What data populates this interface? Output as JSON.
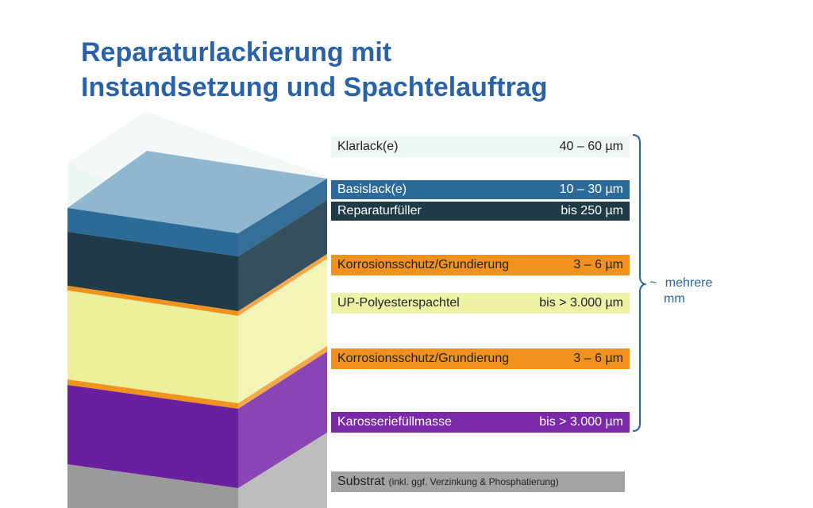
{
  "title": {
    "line1": "Reparaturlackierung mit",
    "line2": "Instandsetzung und Spachtelauftrag"
  },
  "layers": [
    {
      "id": "klarlack",
      "name": "Klarlack(e)",
      "thickness": "40 – 60 µm",
      "label_bg": "#eef6f6",
      "text_color": "#222222"
    },
    {
      "id": "basislack",
      "name": "Basislack(e)",
      "thickness": "10 – 30 µm",
      "label_bg": "#2b6a99",
      "text_color": "#ffffff"
    },
    {
      "id": "reparaturfueller",
      "name": "Reparaturfüller",
      "thickness": "bis 250 µm",
      "label_bg": "#1f3b48",
      "text_color": "#ffffff"
    },
    {
      "id": "korrosion1",
      "name": "Korrosionsschutz/Grundierung",
      "thickness": "3 – 6 µm",
      "label_bg": "#f0921e",
      "text_color": "#222222"
    },
    {
      "id": "polyesterspachtel",
      "name": "UP-Polyesterspachtel",
      "thickness": "bis > 3.000 µm",
      "label_bg": "#eef2a6",
      "text_color": "#222222"
    },
    {
      "id": "korrosion2",
      "name": "Korrosionsschutz/Grundierung",
      "thickness": "3 – 6 µm",
      "label_bg": "#f0921e",
      "text_color": "#222222"
    },
    {
      "id": "karosseriefuellmasse",
      "name": "Karosseriefüllmasse",
      "thickness": "bis > 3.000 µm",
      "label_bg": "#7a2aa8",
      "text_color": "#ffffff"
    },
    {
      "id": "substrat",
      "name": "Substrat",
      "name_note": "(inkl. ggf. Verzinkung & Phosphatierung)",
      "label_bg": "#a3a3a3",
      "text_color": "#222222"
    }
  ],
  "brace": {
    "symbol": "~",
    "line1": "mehrere",
    "line2": "mm",
    "color": "#2a62a8"
  },
  "colors": {
    "klar_front": "#eef5f5",
    "klar_side": "#f6fafa",
    "klar_top": "#f2f8f8",
    "basis_front": "#2b6a99",
    "basis_side": "#356e96",
    "basis_top": "#8fb8d0",
    "fueller_front": "#1f3b48",
    "fueller_side": "#33505c",
    "orange": "#f0921e",
    "spachtel_front": "#ecf09a",
    "spachtel_side": "#f3f5b8",
    "purple_front": "#6a1f9e",
    "purple_side": "#8a45b4",
    "grey_front": "#9a9a9a",
    "grey_side": "#bdbdbd"
  }
}
